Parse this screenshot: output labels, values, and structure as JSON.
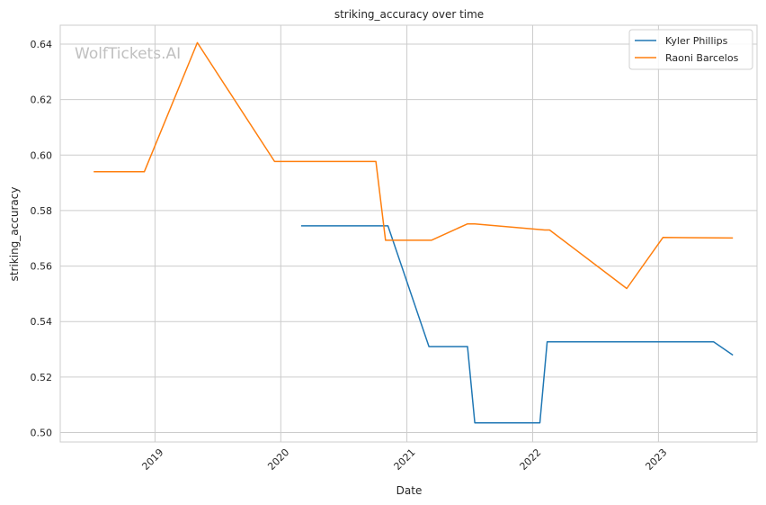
{
  "chart_data": {
    "type": "line",
    "title": "striking_accuracy over time",
    "xlabel": "Date",
    "ylabel": "striking_accuracy",
    "xlim": [
      "2018-04-01",
      "2023-10-14"
    ],
    "ylim": [
      0.4966,
      0.6468
    ],
    "x_ticks": [
      "2019-01-01",
      "2020-01-01",
      "2021-01-01",
      "2022-01-01",
      "2023-01-01"
    ],
    "x_tick_labels": [
      "2019",
      "2020",
      "2021",
      "2022",
      "2023"
    ],
    "y_ticks": [
      0.5,
      0.52,
      0.54,
      0.56,
      0.58,
      0.6,
      0.62,
      0.64
    ],
    "y_tick_labels": [
      "0.50",
      "0.52",
      "0.54",
      "0.56",
      "0.58",
      "0.60",
      "0.62",
      "0.64"
    ],
    "grid": true,
    "legend_position": "top-right",
    "watermark": "WolfTickets.AI",
    "series": [
      {
        "name": "Kyler Phillips",
        "color": "#1f77b4",
        "points": [
          [
            "2020-02-29",
            0.5745
          ],
          [
            "2020-11-07",
            0.5745
          ],
          [
            "2021-03-06",
            0.531
          ],
          [
            "2021-06-26",
            0.531
          ],
          [
            "2021-07-17",
            0.5035
          ],
          [
            "2022-01-22",
            0.5035
          ],
          [
            "2022-02-12",
            0.5327
          ],
          [
            "2023-06-10",
            0.5327
          ],
          [
            "2023-08-05",
            0.5279
          ]
        ]
      },
      {
        "name": "Raoni Barcelos",
        "color": "#ff7f0e",
        "points": [
          [
            "2018-07-07",
            0.594
          ],
          [
            "2018-12-01",
            0.594
          ],
          [
            "2019-05-04",
            0.6405
          ],
          [
            "2019-12-14",
            0.5977
          ],
          [
            "2020-10-03",
            0.5977
          ],
          [
            "2020-10-31",
            0.5693
          ],
          [
            "2021-03-13",
            0.5693
          ],
          [
            "2021-06-26",
            0.5752
          ],
          [
            "2021-07-17",
            0.5752
          ],
          [
            "2022-02-05",
            0.573
          ],
          [
            "2022-02-19",
            0.573
          ],
          [
            "2022-10-01",
            0.5519
          ],
          [
            "2023-01-14",
            0.5703
          ],
          [
            "2023-08-05",
            0.5701
          ]
        ]
      }
    ]
  }
}
